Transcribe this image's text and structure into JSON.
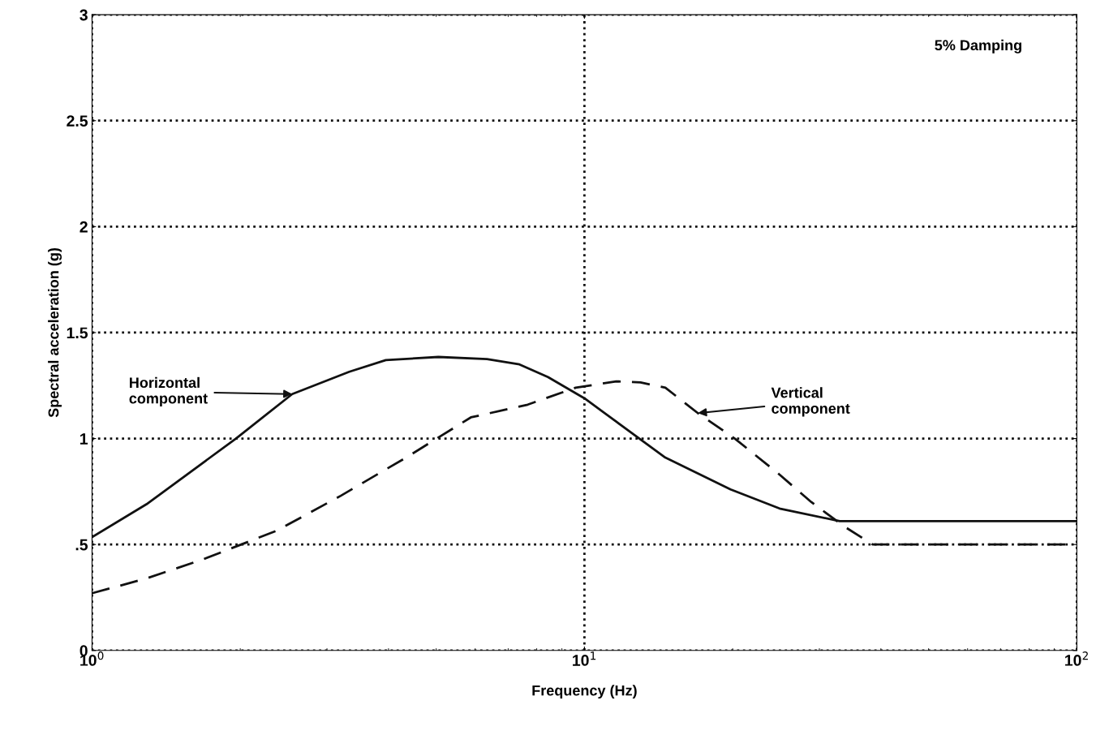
{
  "chart_data": {
    "type": "line",
    "xlabel": "Frequency (Hz)",
    "ylabel": "Spectral acceleration (g)",
    "log": "x",
    "grid": true,
    "legend": false,
    "xlim": [
      1,
      100
    ],
    "xticks": [
      {
        "value": 1,
        "label": "10$^{0}$"
      },
      {
        "value": 10,
        "label": "10$^{1}$"
      },
      {
        "value": 100,
        "label": "10$^{2}$"
      }
    ],
    "ylim": [
      0,
      3
    ],
    "yticks": [
      0,
      {
        "value": 0.5,
        "label": ".5"
      },
      1,
      1.5,
      2,
      2.5,
      3
    ],
    "series": [
      {
        "color": "#111111",
        "line_style": "solid",
        "x": [
          1,
          1.29,
          1.96,
          2.55,
          3.33,
          3.95,
          5.05,
          6.34,
          7.38,
          8.43,
          10,
          11.6,
          14.6,
          19.8,
          24.9,
          33,
          100
        ],
        "values": [
          0.535,
          0.69,
          1.0,
          1.21,
          1.315,
          1.37,
          1.385,
          1.375,
          1.35,
          1.29,
          1.19,
          1.08,
          0.91,
          0.76,
          0.67,
          0.61,
          0.61
        ]
      },
      {
        "color": "#111111",
        "line_style": "dashed",
        "x": [
          1,
          1.29,
          1.68,
          2.37,
          3.2,
          4.34,
          5.88,
          7.67,
          9.6,
          11.6,
          13,
          14.6,
          17,
          20.2,
          24.9,
          28.9,
          33.7,
          38.5,
          100
        ],
        "values": [
          0.27,
          0.34,
          0.43,
          0.565,
          0.73,
          0.91,
          1.1,
          1.16,
          1.24,
          1.27,
          1.265,
          1.24,
          1.12,
          1.0,
          0.83,
          0.7,
          0.585,
          0.5,
          0.5
        ]
      }
    ],
    "annotations": [
      {
        "text": "Horizontal\ncomponent",
        "x": 2.55,
        "y": 1.21
      },
      {
        "text": "Vertical\ncomponent",
        "x": 17,
        "y": 1.12
      },
      "5% Damping"
    ]
  }
}
